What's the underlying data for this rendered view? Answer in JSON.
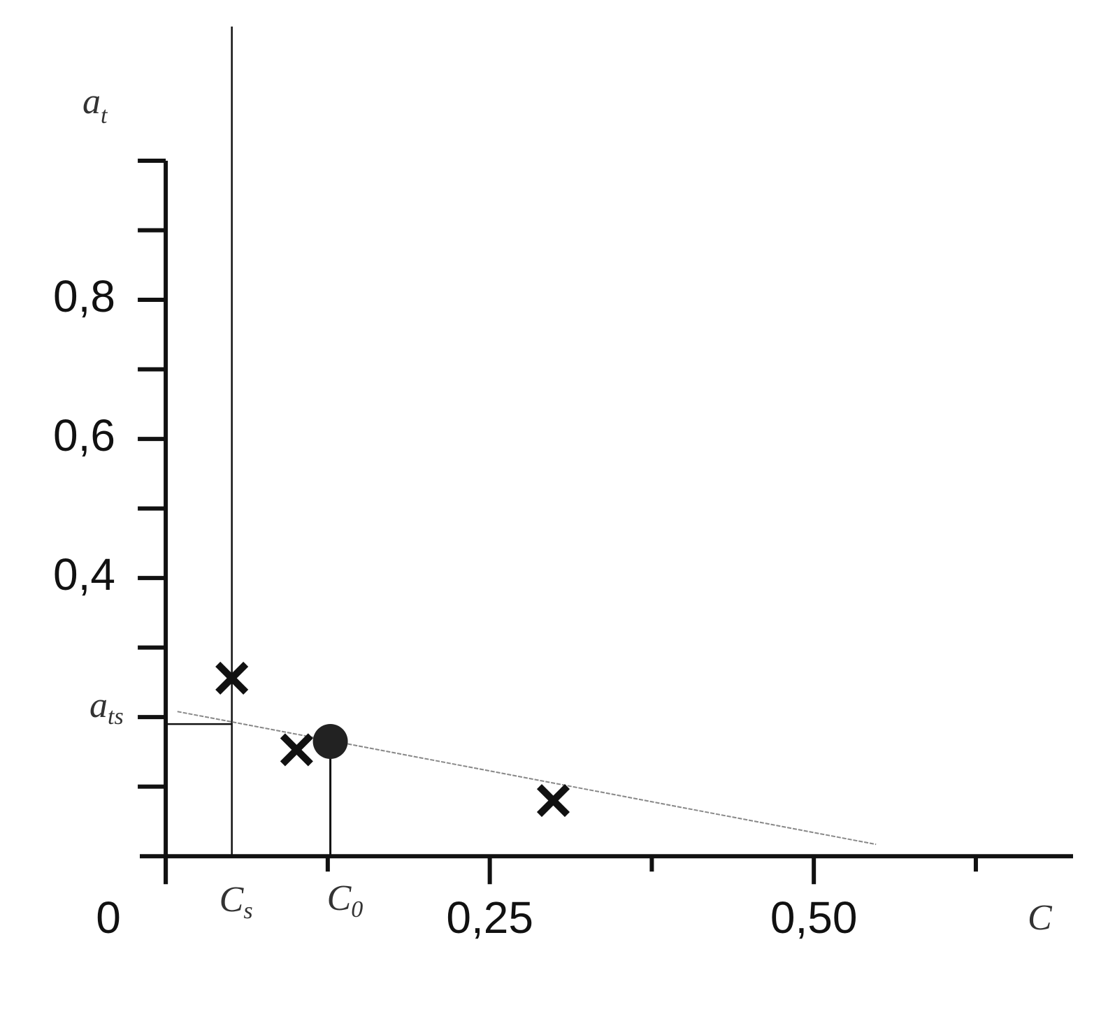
{
  "chart_data": {
    "type": "scatter",
    "ylabel": {
      "base": "a",
      "sub": "t"
    },
    "xlabel": "C",
    "xlim": [
      -0.02,
      0.7
    ],
    "ylim": [
      -0.04,
      1.0
    ],
    "xticks": [
      0,
      {
        "value": 0.25,
        "label": "0,25"
      },
      {
        "value": 0.5,
        "label": "0,50"
      }
    ],
    "xminorticks": [
      0.125,
      0.375,
      0.625
    ],
    "yticks": [
      {
        "value": 0.4,
        "label": "0,4"
      },
      {
        "value": 0.6,
        "label": "0,6"
      },
      {
        "value": 0.8,
        "label": "0,8"
      }
    ],
    "yminorticks": [
      0.1,
      0.2,
      0.3,
      0.5,
      0.7,
      0.9,
      1.0
    ],
    "points": {
      "x": [
        0.051,
        0.101,
        0.299
      ],
      "y": [
        0.256,
        0.153,
        0.08
      ],
      "color": "#111"
    },
    "circle": {
      "x": 0.127,
      "y": 0.165,
      "color": "#222"
    },
    "line": {
      "x": [
        0.009,
        0.548
      ],
      "y": [
        0.208,
        0.017
      ],
      "color": "#888"
    },
    "c_s": {
      "value": 0.051,
      "base": "C",
      "sub": "s"
    },
    "c_0": {
      "value": 0.127,
      "base": "C",
      "sub": "0"
    },
    "a_ts": {
      "value": 0.19,
      "base": "a",
      "sub": "ts"
    }
  }
}
